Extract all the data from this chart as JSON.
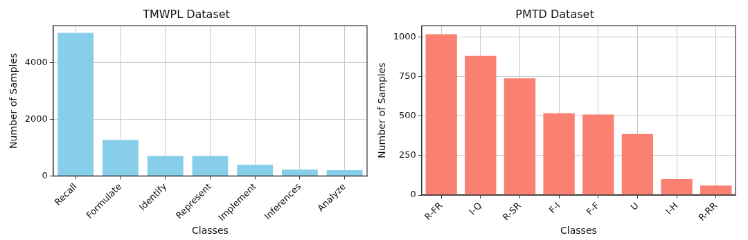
{
  "chart_data": [
    {
      "type": "bar",
      "title": "TMWPL Dataset",
      "xlabel": "Classes",
      "ylabel": "Number of Samples",
      "categories": [
        "Recall",
        "Formulate",
        "Identify",
        "Represent",
        "Implement",
        "Inferences",
        "Analyze"
      ],
      "values": [
        5050,
        1275,
        705,
        705,
        396,
        222,
        203
      ],
      "color": "#87ceeb",
      "ylim": [
        0,
        5300
      ],
      "yticks": [
        0,
        2000,
        4000
      ],
      "grid": true,
      "legend": false
    },
    {
      "type": "bar",
      "title": "PMTD Dataset",
      "xlabel": "Classes",
      "ylabel": "Number of Samples",
      "categories": [
        "R-FR",
        "I-Q",
        "R-SR",
        "F-I",
        "F-F",
        "U",
        "I-H",
        "R-RR"
      ],
      "values": [
        1016,
        880,
        738,
        517,
        509,
        386,
        101,
        60
      ],
      "color": "#fa8072",
      "ylim": [
        0,
        1070
      ],
      "yticks": [
        0,
        250,
        500,
        750,
        1000
      ],
      "grid": true,
      "legend": false
    }
  ]
}
